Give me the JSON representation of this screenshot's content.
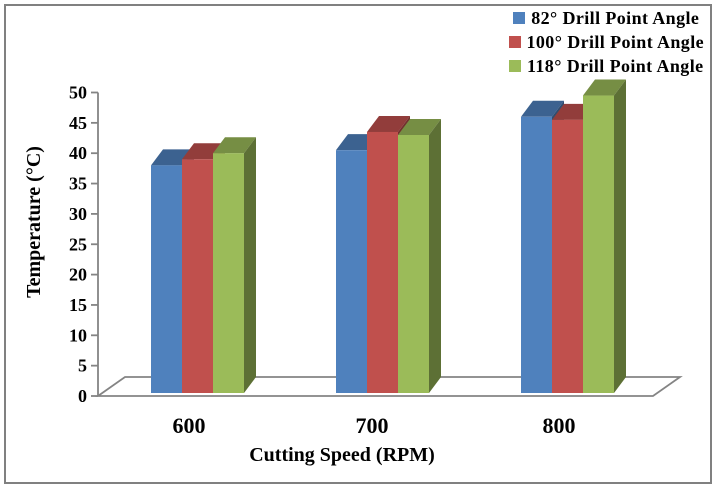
{
  "figure": {
    "background": "#FFFFFF",
    "border_color": "#808080"
  },
  "axes": {
    "axis_color": "#848484",
    "text_color": "#000000"
  },
  "chart_data": {
    "type": "bar",
    "style": "3d-clustered",
    "title": "",
    "categories": [
      "600",
      "700",
      "800"
    ],
    "series": [
      {
        "name": "82° Drill Point Angle",
        "color": "#4F81BD",
        "values": [
          38,
          40.5,
          46
        ]
      },
      {
        "name": "100° Drill Point Angle",
        "color": "#C0504D",
        "values": [
          39,
          43.5,
          45.5
        ]
      },
      {
        "name": "118° Drill Point Angle",
        "color": "#9BBB59",
        "values": [
          40,
          43,
          49.5
        ]
      }
    ],
    "xlabel": "Cutting Speed (RPM)",
    "ylabel": "Temperature (°C)",
    "ylim": [
      0,
      50
    ],
    "ytick_step": 5,
    "grid": false,
    "legend_position": "top-right"
  }
}
